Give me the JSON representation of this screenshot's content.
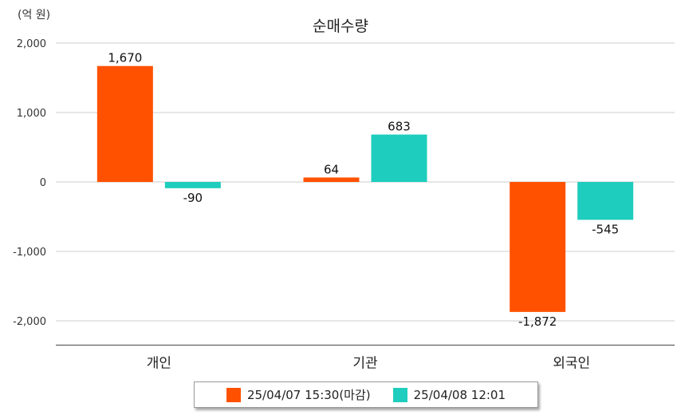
{
  "chart_data": {
    "type": "bar",
    "title": "순매수량",
    "unit_label": "(억 원)",
    "categories": [
      "개인",
      "기관",
      "외국인"
    ],
    "series": [
      {
        "name": "25/04/07 15:30(마감)",
        "color": "#ff5100",
        "values": [
          1670,
          64,
          -1872
        ],
        "labels": [
          "1,670",
          "64",
          "-1,872"
        ]
      },
      {
        "name": "25/04/08 12:01",
        "color": "#1ecdbd",
        "values": [
          -90,
          683,
          -545
        ],
        "labels": [
          "-90",
          "683",
          "-545"
        ]
      }
    ],
    "yticks": [
      "2,000",
      "1,000",
      "0",
      "-1,000",
      "-2,000"
    ],
    "ytick_values": [
      2000,
      1000,
      0,
      -1000,
      -2000
    ],
    "ylim": [
      -2350,
      2000
    ],
    "grid": true,
    "legend_position": "bottom"
  }
}
